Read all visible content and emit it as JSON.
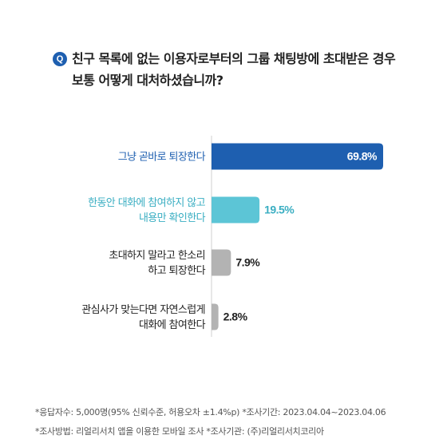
{
  "question": {
    "badge": "Q",
    "line1": "친구 목록에 없는 이용자로부터의 그룹 채팅방에 초대받은 경우",
    "line2": "보통 어떻게 대처하셨습니까?"
  },
  "chart_data": {
    "type": "bar",
    "orientation": "horizontal",
    "categories": [
      [
        "그냥 곧바로 퇴장한다"
      ],
      [
        "한동안 대화에 참여하지 않고",
        "내용만 확인한다"
      ],
      [
        "초대하지 말라고 한소리",
        "하고 퇴장한다"
      ],
      [
        "관심사가 맞는다면 자연스럽게",
        "대화에 참여한다"
      ]
    ],
    "values": [
      69.8,
      19.5,
      7.9,
      2.8
    ],
    "value_labels": [
      "69.8%",
      "19.5%",
      "7.9%",
      "2.8%"
    ],
    "colors": [
      "#1e5fb0",
      "#5cc5d6",
      "#b3b3b3",
      "#b3b3b3"
    ],
    "label_colors": [
      "#1e5fb0",
      "#3aaec2",
      "#222222",
      "#222222"
    ],
    "value_colors": [
      "#ffffff",
      "#3aaec2",
      "#222222",
      "#222222"
    ],
    "xlim": [
      0,
      69.8
    ]
  },
  "footnotes": {
    "line1": "*응답자수: 5,000명(95% 신뢰수준, 허용오차 ±1.4%p)  *조사기간: 2023.04.04~2023.04.06",
    "line2": "*조사방법: 리얼리서치 앱을 이용한 모바일 조사  *조사기관: (주)리얼리서치코리아"
  }
}
